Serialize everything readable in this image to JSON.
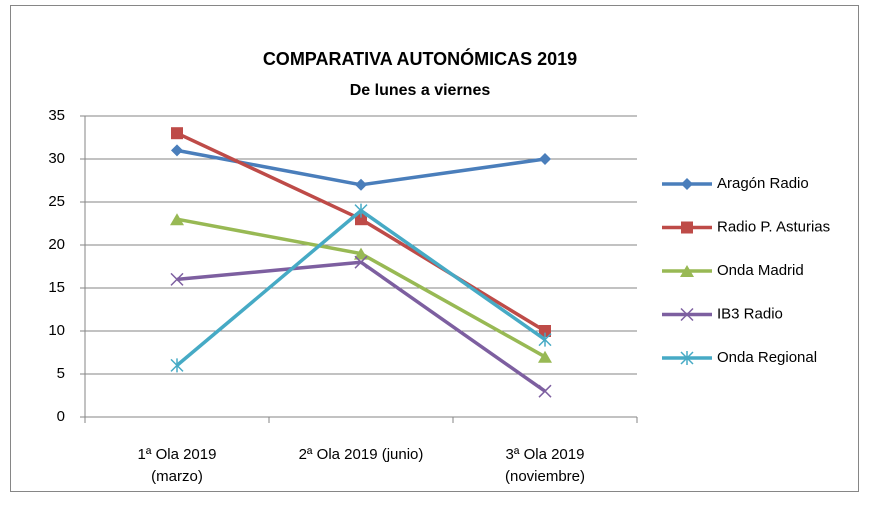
{
  "chart_data": {
    "type": "line",
    "title": "COMPARATIVA AUTONÓMICAS 2019",
    "subtitle": "De lunes a viernes",
    "categories": [
      [
        "1ª Ola 2019",
        "(marzo)"
      ],
      [
        "2ª Ola 2019 (junio)"
      ],
      [
        "3ª Ola 2019",
        "(noviembre)"
      ]
    ],
    "series": [
      {
        "name": "Aragón Radio",
        "color": "#4a7ebb",
        "marker": "diamond",
        "values": [
          31,
          27,
          30
        ]
      },
      {
        "name": "Radio P. Asturias",
        "color": "#be4b48",
        "marker": "square",
        "values": [
          33,
          23,
          10
        ]
      },
      {
        "name": "Onda Madrid",
        "color": "#98b954",
        "marker": "triangle",
        "values": [
          23,
          19,
          7
        ]
      },
      {
        "name": "IB3 Radio",
        "color": "#7d5fa0",
        "marker": "x",
        "values": [
          16,
          18,
          3
        ]
      },
      {
        "name": "Onda Regional",
        "color": "#46aac5",
        "marker": "asterisk",
        "values": [
          6,
          24,
          9
        ]
      }
    ],
    "ylim": [
      0,
      35
    ],
    "yticks": [
      0,
      5,
      10,
      15,
      20,
      25,
      30,
      35
    ],
    "grid": true,
    "legend": "right"
  }
}
